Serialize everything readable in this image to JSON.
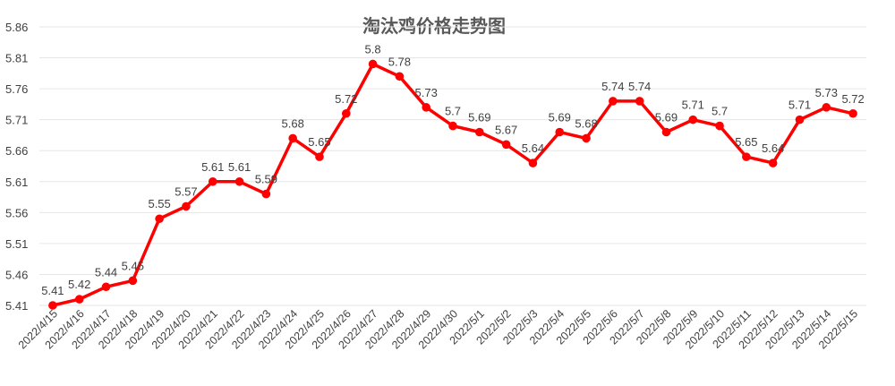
{
  "chart_data": {
    "type": "line",
    "title": "淘汰鸡价格走势图",
    "xlabel": "",
    "ylabel": "",
    "ylim": [
      5.41,
      5.86
    ],
    "yticks": [
      "5.41",
      "5.46",
      "5.51",
      "5.56",
      "5.61",
      "5.66",
      "5.71",
      "5.76",
      "5.81",
      "5.86"
    ],
    "grid": true,
    "legend": "none",
    "categories": [
      "2022/4/15",
      "2022/4/16",
      "2022/4/17",
      "2022/4/18",
      "2022/4/19",
      "2022/4/20",
      "2022/4/21",
      "2022/4/22",
      "2022/4/23",
      "2022/4/24",
      "2022/4/25",
      "2022/4/26",
      "2022/4/27",
      "2022/4/28",
      "2022/4/29",
      "2022/4/30",
      "2022/5/1",
      "2022/5/2",
      "2022/5/3",
      "2022/5/4",
      "2022/5/5",
      "2022/5/6",
      "2022/5/7",
      "2022/5/8",
      "2022/5/9",
      "2022/5/10",
      "2022/5/11",
      "2022/5/12",
      "2022/5/13",
      "2022/5/14",
      "2022/5/15"
    ],
    "series": [
      {
        "values": [
          5.41,
          5.42,
          5.44,
          5.45,
          5.55,
          5.57,
          5.61,
          5.61,
          5.59,
          5.68,
          5.65,
          5.72,
          5.8,
          5.78,
          5.73,
          5.7,
          5.69,
          5.67,
          5.64,
          5.69,
          5.68,
          5.74,
          5.74,
          5.69,
          5.71,
          5.7,
          5.65,
          5.64,
          5.71,
          5.73,
          5.72
        ],
        "color": "#ff0000"
      }
    ]
  }
}
